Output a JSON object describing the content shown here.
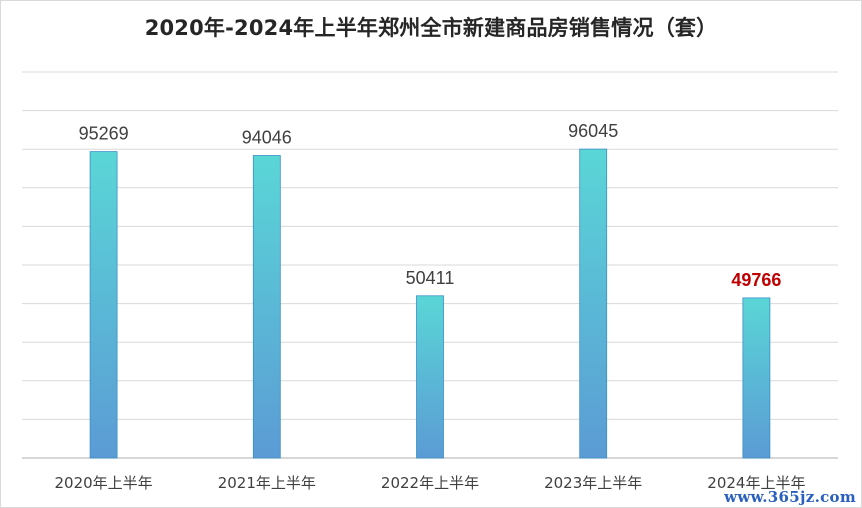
{
  "chart_data": {
    "type": "bar",
    "title": "2020年-2024年上半年郑州全市新建商品房销售情况（套）",
    "categories": [
      "2020年上半年",
      "2021年上半年",
      "2022年上半年",
      "2023年上半年",
      "2024年上半年"
    ],
    "values": [
      95269,
      94046,
      50411,
      96045,
      49766
    ],
    "data_labels": [
      "95269",
      "94046",
      "50411",
      "96045",
      "49766"
    ],
    "highlight_index": 4,
    "ylim": [
      0,
      120000
    ],
    "grid": true,
    "legend": "none",
    "colors": {
      "bar_top": "#5ad6d6",
      "bar_bottom": "#5b9bd5",
      "bar_edge": "#3a8fc7",
      "grid": "#d9d9d9",
      "axis": "#bfbfbf",
      "label": "#404040",
      "highlight_label": "#c00000"
    }
  },
  "watermark": "www.365jz.com"
}
